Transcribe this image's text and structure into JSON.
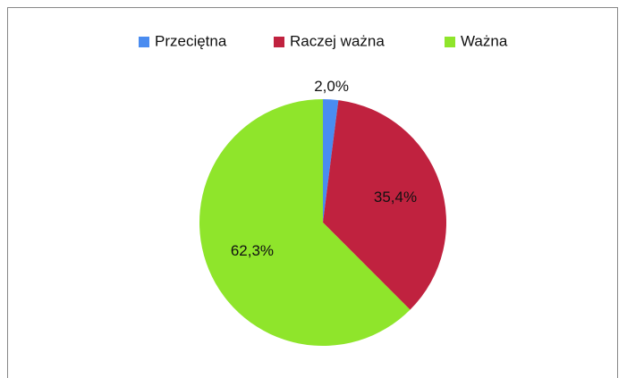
{
  "chart_data": {
    "type": "pie",
    "categories": [
      "Przeciętna",
      "Raczej ważna",
      "Ważna"
    ],
    "values": [
      2.0,
      35.4,
      62.3
    ],
    "value_labels": [
      "2,0%",
      "35,4%",
      "62,3%"
    ],
    "colors": [
      "#4a8cf0",
      "#c0223f",
      "#8fe52b"
    ],
    "legend": "top"
  }
}
